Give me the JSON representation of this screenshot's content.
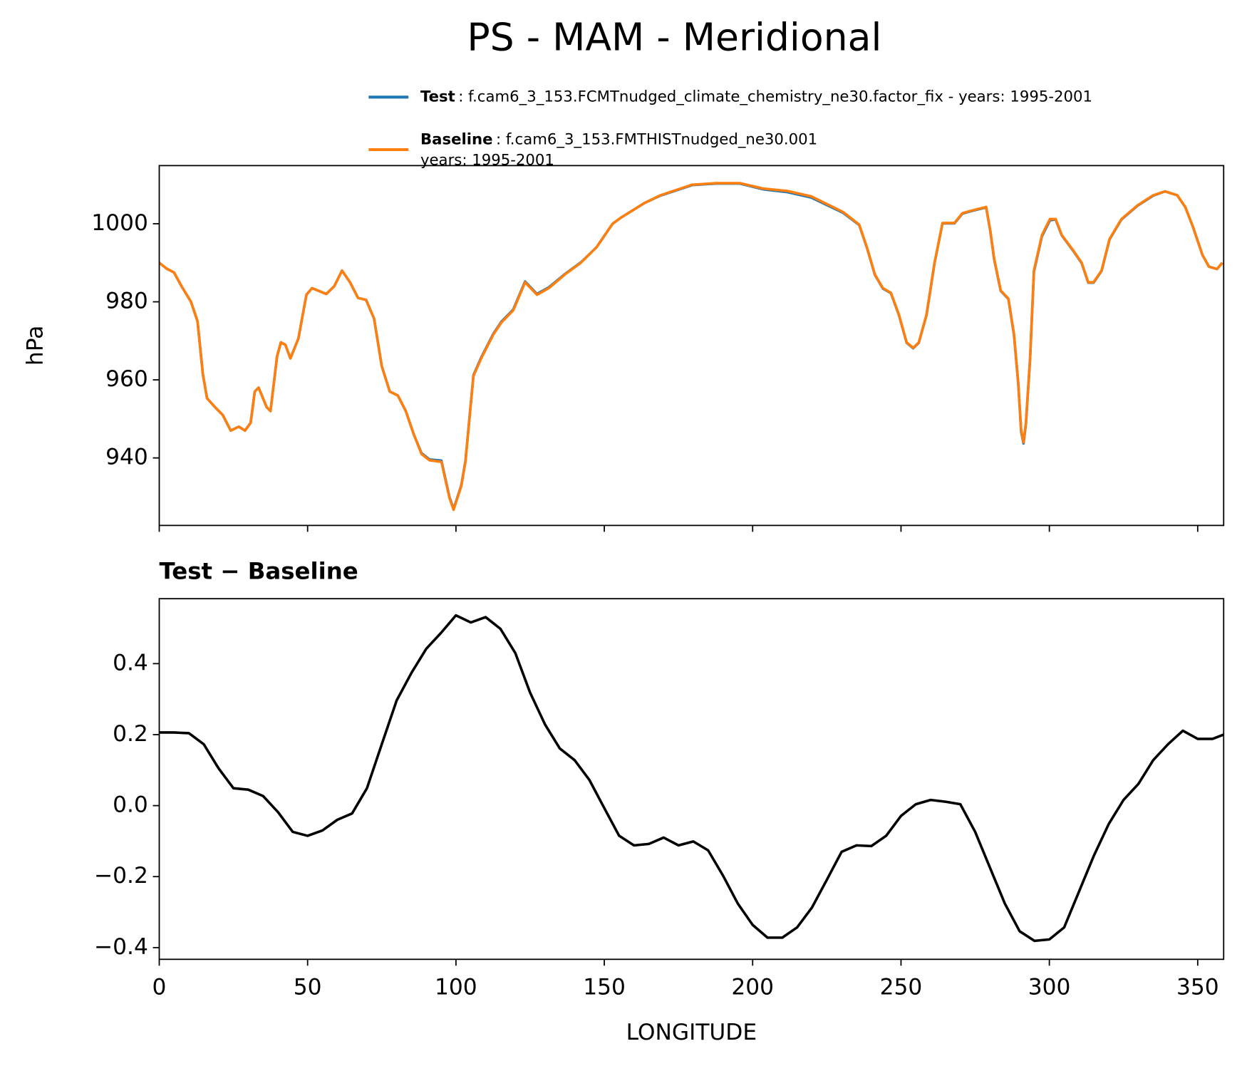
{
  "title": "PS - MAM - Meridional",
  "chart_data": [
    {
      "type": "line",
      "ylabel": "hPa",
      "xlim": [
        0,
        358.75
      ],
      "ylim": [
        922.7,
        1014.9
      ],
      "xticks": [
        0,
        50,
        100,
        150,
        200,
        250,
        300,
        350
      ],
      "yticks": [
        940,
        960,
        980,
        1000
      ],
      "x": [
        0,
        2.5,
        5,
        7.5,
        10.7,
        12.9,
        14.7,
        16.1,
        18.8,
        21.4,
        24.1,
        26.8,
        28.9,
        30.8,
        32.2,
        33.5,
        36.2,
        37.5,
        39.7,
        41,
        42.5,
        44.2,
        46.9,
        49.6,
        51.5,
        56.3,
        59,
        61.6,
        64.3,
        67,
        69.7,
        72.4,
        75,
        77.7,
        80.4,
        83.1,
        85.8,
        88.4,
        91.1,
        95.1,
        97.8,
        99.2,
        101.8,
        103.2,
        105.9,
        108.5,
        112.6,
        115.3,
        119.3,
        123.3,
        127.3,
        131.3,
        136.7,
        142.1,
        147.4,
        152.8,
        155.5,
        163.5,
        168.9,
        179.6,
        187.6,
        195.7,
        203.7,
        211.7,
        219.8,
        230.5,
        235.9,
        238.5,
        241.2,
        243.9,
        246.6,
        249.3,
        251.9,
        254.1,
        256,
        258.6,
        261.3,
        264,
        268,
        270.7,
        273.4,
        278.7,
        280.1,
        281.4,
        283.6,
        286.2,
        288.1,
        289.5,
        290.5,
        291.3,
        292.1,
        293.5,
        294.8,
        297.5,
        300.2,
        302.1,
        304.2,
        308.2,
        310.9,
        313.1,
        314.9,
        317.6,
        320.3,
        324.3,
        329.7,
        335,
        339,
        343.1,
        345.8,
        348.4,
        351.6,
        353.8,
        356.5,
        358.3
      ],
      "series": [
        {
          "name": "Test",
          "label_lines": [
            ": f.cam6_3_153.FCMTnudged_climate_chemistry_ne30.factor_fix - years: 1995-2001"
          ],
          "color": "#1f77b4",
          "values": [
            990,
            988.5,
            987.5,
            984,
            980,
            975,
            961.5,
            955.3,
            953,
            951,
            947,
            948,
            947,
            949,
            957,
            958,
            953,
            952,
            966,
            969.6,
            969,
            965.5,
            970.6,
            981.8,
            983.5,
            982,
            984,
            988,
            985,
            981,
            980.5,
            975.7,
            963.5,
            957,
            956,
            952,
            946,
            941.2,
            939.6,
            939.3,
            930,
            926.9,
            933,
            939.2,
            961.2,
            965.7,
            971.8,
            974.9,
            978,
            985.2,
            982,
            983.7,
            987.1,
            990.1,
            994,
            1000,
            1001.5,
            1005.3,
            1007.2,
            1009.9,
            1010.3,
            1010.3,
            1008.8,
            1008.1,
            1006.7,
            1002.8,
            999.7,
            993.9,
            986.9,
            983.4,
            982.2,
            976.6,
            969.5,
            968.1,
            969.5,
            976.6,
            989.9,
            1000.1,
            1000.1,
            1002.6,
            1003.2,
            1004.2,
            998.1,
            990.9,
            982.8,
            980.7,
            971.4,
            959.2,
            946.7,
            943.7,
            948.7,
            965.2,
            987.7,
            996.8,
            1000.9,
            1001.1,
            997,
            992.9,
            989.9,
            984.9,
            984.9,
            987.9,
            996,
            1001.1,
            1004.6,
            1007.2,
            1008.3,
            1007.3,
            1004.3,
            999.2,
            992,
            989,
            988.4,
            990
          ]
        },
        {
          "name": "Baseline",
          "label_lines": [
            ": f.cam6_3_153.FMTHISTnudged_ne30.001",
            "years: 1995-2001"
          ],
          "color": "#ff7f0e",
          "values": [
            990,
            988.5,
            987.5,
            984,
            980,
            975,
            961.4,
            955.3,
            953,
            951,
            947,
            948,
            947,
            949,
            957,
            958,
            953,
            952,
            966,
            969.6,
            969,
            965.5,
            970.6,
            981.8,
            983.5,
            982,
            984,
            988,
            985,
            981,
            980.5,
            975.7,
            963.5,
            957,
            956,
            952,
            946,
            941,
            939.4,
            939,
            929.8,
            926.7,
            932.8,
            939,
            961,
            965.5,
            971.6,
            974.7,
            977.8,
            985,
            981.8,
            983.5,
            987,
            990,
            994,
            1000,
            1001.5,
            1005.3,
            1007.3,
            1010,
            1010.4,
            1010.4,
            1009,
            1008.4,
            1007,
            1003,
            999.8,
            994,
            987,
            983.5,
            982.3,
            976.7,
            969.6,
            968.2,
            969.6,
            976.7,
            990,
            1000.2,
            1000.2,
            1002.7,
            1003.3,
            1004.3,
            998.2,
            991,
            982.9,
            980.8,
            971.6,
            959.4,
            947,
            944,
            949,
            965.5,
            988,
            997.1,
            1001.2,
            1001.2,
            997.1,
            993,
            990,
            985,
            985,
            988,
            996.1,
            1001.2,
            1004.7,
            1007.3,
            1008.3,
            1007.3,
            1004.3,
            999.2,
            992,
            989,
            988.4,
            990
          ]
        }
      ]
    },
    {
      "type": "line",
      "title": "Test − Baseline",
      "xlabel": "LONGITUDE",
      "xlim": [
        0,
        358.75
      ],
      "ylim": [
        -0.433,
        0.583
      ],
      "xticks": [
        0,
        50,
        100,
        150,
        200,
        250,
        300,
        350
      ],
      "yticks": [
        {
          "value": -0.4,
          "label": "−0.4"
        },
        {
          "value": -0.2,
          "label": "−0.2"
        },
        {
          "value": 0,
          "label": "0.0"
        },
        0.2,
        0.4
      ],
      "x": [
        0,
        5,
        10,
        15,
        20,
        25,
        30,
        35,
        40,
        45,
        50,
        55,
        60,
        65,
        70,
        75,
        80,
        85,
        90,
        95,
        100,
        105,
        110,
        115,
        120,
        125,
        130,
        135,
        140,
        145,
        150,
        155,
        160,
        165,
        170,
        175,
        180,
        185,
        190,
        195,
        200,
        205,
        210,
        215,
        220,
        225,
        230,
        235,
        240,
        245,
        250,
        255,
        260,
        265,
        270,
        275,
        280,
        285,
        290,
        295,
        300,
        305,
        310,
        315,
        320,
        325,
        330,
        335,
        340,
        345,
        350,
        355,
        358.75
      ],
      "series": [
        {
          "color": "#000000",
          "values": [
            0.206,
            0.206,
            0.204,
            0.173,
            0.105,
            0.049,
            0.045,
            0.027,
            -0.018,
            -0.074,
            -0.085,
            -0.07,
            -0.04,
            -0.022,
            0.049,
            0.173,
            0.296,
            0.374,
            0.442,
            0.487,
            0.536,
            0.516,
            0.531,
            0.498,
            0.43,
            0.318,
            0.229,
            0.161,
            0.128,
            0.072,
            -0.007,
            -0.085,
            -0.112,
            -0.108,
            -0.09,
            -0.112,
            -0.101,
            -0.126,
            -0.197,
            -0.276,
            -0.336,
            -0.372,
            -0.372,
            -0.343,
            -0.287,
            -0.209,
            -0.13,
            -0.112,
            -0.114,
            -0.085,
            -0.029,
            0.004,
            0.016,
            0.011,
            0.004,
            -0.074,
            -0.175,
            -0.276,
            -0.354,
            -0.381,
            -0.377,
            -0.343,
            -0.242,
            -0.141,
            -0.052,
            0.016,
            0.061,
            0.128,
            0.173,
            0.211,
            0.188,
            0.188,
            0.2
          ]
        }
      ]
    }
  ]
}
